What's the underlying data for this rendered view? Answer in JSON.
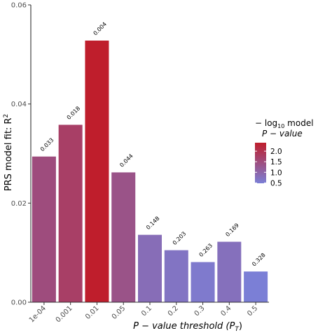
{
  "chart_data": {
    "type": "bar",
    "categories": [
      "1e-04",
      "0.001",
      "0.01",
      "0.05",
      "0.1",
      "0.2",
      "0.3",
      "0.4",
      "0.5"
    ],
    "values": [
      0.0294,
      0.0358,
      0.0528,
      0.0262,
      0.0136,
      0.0105,
      0.0081,
      0.0122,
      0.0062
    ],
    "bar_labels": [
      "0.033",
      "0.018",
      "0.004",
      "0.044",
      "0.148",
      "0.203",
      "0.263",
      "0.169",
      "0.328"
    ],
    "color_values": [
      1.48,
      1.74,
      2.4,
      1.36,
      0.83,
      0.69,
      0.58,
      0.77,
      0.48
    ],
    "xlabel": "P − value threshold (P",
    "xlabel_sub": "T",
    "xlabel_close": ")",
    "ylabel": "PRS model fit: R",
    "ylabel_sup": "2",
    "ylim": [
      0,
      0.06
    ],
    "yticks": [
      "0.00",
      "0.02",
      "0.04",
      "0.06"
    ],
    "grid": false,
    "legend": {
      "title_line1_prefix": "− log",
      "title_line1_sub": "10",
      "title_line1_suffix": " model",
      "title_line2": "P − value",
      "ticks": [
        "2.0",
        "1.5",
        "1.0",
        "0.5"
      ],
      "tick_values": [
        2.0,
        1.5,
        1.0,
        0.5
      ],
      "range": [
        0.48,
        2.4
      ],
      "low_color": "#7b7fd6",
      "high_color": "#bf1e2c",
      "placement": "right"
    }
  }
}
